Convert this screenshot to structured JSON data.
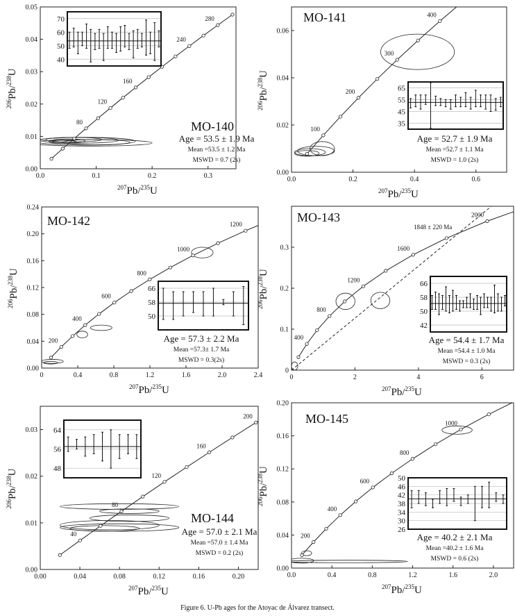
{
  "caption": "Figure 6. U-Pb ages for the Atoyac de Álvarez transect.",
  "chart_data": [
    {
      "type": "concordia",
      "title": "MO-140",
      "stats": {
        "age": "Age = 53.5 ± 1.9 Ma",
        "mean": "Mean =53.5 ± 1.2 Ma",
        "mswd": "MSWD = 0.7 (2s)"
      },
      "xlabel": [
        "207",
        "Pb/",
        "235",
        "U"
      ],
      "ylabel": [
        "206",
        "Pb/",
        "238",
        "U"
      ],
      "xlim": [
        0,
        0.35
      ],
      "xticks": [
        {
          "value": 0,
          "label": "0.0"
        },
        0.1,
        0.2,
        0.3
      ],
      "ylim": [
        0,
        0.05
      ],
      "yticks": [
        {
          "value": 0,
          "label": "0.00"
        },
        0.01,
        0.02,
        0.03,
        0.04,
        {
          "value": 0.05,
          "label": "0.05"
        }
      ],
      "concordia": {
        "x": [
          0.019897,
          0.04018,
          0.060872,
          0.081975,
          0.1035,
          0.12545,
          0.14784,
          0.17068,
          0.19397,
          0.21771,
          0.24192,
          0.26664,
          0.29183,
          0.31753,
          0.34375
        ],
        "y": [
          0.003107,
          0.006224,
          0.009351,
          0.012487,
          0.015633,
          0.018789,
          0.021955,
          0.025131,
          0.028316,
          0.031511,
          0.034717,
          0.037932,
          0.041157,
          0.044392,
          0.047638
        ],
        "labels": [
          null,
          null,
          null,
          80,
          null,
          120,
          null,
          160,
          null,
          200,
          null,
          240,
          null,
          280,
          null
        ]
      },
      "ellipses": [
        {
          "x": 0.07,
          "y": 0.0088,
          "rx": 0.07,
          "ry": 0.0009
        },
        {
          "x": 0.08,
          "y": 0.0085,
          "rx": 0.09,
          "ry": 0.0012
        },
        {
          "x": 0.06,
          "y": 0.009,
          "rx": 0.05,
          "ry": 0.0007
        },
        {
          "x": 0.1,
          "y": 0.0082,
          "rx": 0.06,
          "ry": 0.0008
        },
        {
          "x": 0.05,
          "y": 0.0086,
          "rx": 0.03,
          "ry": 0.0006
        },
        {
          "x": 0.04,
          "y": 0.0083,
          "rx": 0.025,
          "ry": 0.0005
        },
        {
          "x": 0.09,
          "y": 0.008,
          "rx": 0.11,
          "ry": 0.001
        }
      ],
      "inset": {
        "ylim": [
          35,
          75
        ],
        "yticks": [
          70,
          60,
          50,
          40
        ],
        "mean": 53.5,
        "values": [
          54,
          56,
          52,
          55,
          57,
          50,
          53,
          55,
          49,
          56,
          54,
          52,
          55,
          57,
          53,
          51,
          55,
          54,
          56,
          52,
          53,
          55
        ],
        "errors": [
          6,
          7,
          8,
          5,
          9,
          12,
          6,
          7,
          10,
          8,
          6,
          7,
          9,
          8,
          6,
          10,
          7,
          5,
          13,
          8,
          14,
          6
        ]
      }
    },
    {
      "type": "concordia",
      "title": "MO-141",
      "stats": {
        "age": "Age = 52.7 ± 1.9 Ma",
        "mean": "Mean =52.7 ± 1.1 Ma",
        "mswd": "MSWD = 1.0 (2s)"
      },
      "xlabel": [
        "207",
        "Pb/",
        "235",
        "U"
      ],
      "ylabel": [
        "206",
        "Pb/",
        "238",
        "U"
      ],
      "xlim": [
        0,
        0.7
      ],
      "xticks": [
        {
          "value": 0,
          "label": "0.0"
        },
        0.2,
        0.4,
        0.6
      ],
      "ylim": [
        0,
        0.07
      ],
      "yticks": [
        {
          "value": 0,
          "label": "0.00"
        },
        0.02,
        0.04,
        0.06
      ],
      "concordia": {
        "x": [
          0.050475,
          0.1035,
          0.15919,
          0.21771,
          0.27918,
          0.34375,
          0.41157,
          0.4828,
          0.55765
        ],
        "y": [
          0.007786,
          0.015633,
          0.023542,
          0.031511,
          0.039543,
          0.047638,
          0.055795,
          0.064016,
          0.0723
        ],
        "labels": [
          null,
          100,
          null,
          200,
          null,
          300,
          null,
          400,
          null
        ]
      },
      "ellipses": [
        {
          "x": 0.41,
          "y": 0.051,
          "rx": 0.12,
          "ry": 0.0075
        },
        {
          "x": 0.06,
          "y": 0.0085,
          "rx": 0.05,
          "ry": 0.0015
        },
        {
          "x": 0.08,
          "y": 0.009,
          "rx": 0.06,
          "ry": 0.002
        },
        {
          "x": 0.05,
          "y": 0.008,
          "rx": 0.04,
          "ry": 0.0012
        },
        {
          "x": 0.1,
          "y": 0.01,
          "rx": 0.04,
          "ry": 0.003
        }
      ],
      "inset": {
        "ylim": [
          30,
          70
        ],
        "yticks": [
          65,
          55,
          45,
          35
        ],
        "mean": 52.7,
        "values": [
          52,
          54,
          53,
          55,
          50,
          54,
          53,
          52,
          51,
          54,
          53,
          55,
          52,
          56,
          54,
          53,
          52,
          51,
          53
        ],
        "errors": [
          4,
          5,
          6,
          4,
          20,
          4,
          3,
          3,
          4,
          5,
          4,
          6,
          5,
          7,
          5,
          6,
          7,
          5,
          4
        ]
      }
    },
    {
      "type": "concordia",
      "title": "MO-142",
      "stats": {
        "age": "Age = 57.3 ± 2.2 Ma",
        "mean": "Mean =57.3± 1.7 Ma",
        "mswd": "MSWD = 0.3(2s)"
      },
      "xlabel": [
        "207",
        "Pb/",
        "235",
        "U"
      ],
      "ylabel": [
        "206",
        "Pb/",
        "238",
        "U"
      ],
      "xlim": [
        0,
        2.4
      ],
      "xticks": [
        0,
        0.4,
        0.8,
        1.2,
        1.6,
        {
          "value": 2,
          "label": "2.0"
        },
        2.4
      ],
      "ylim": [
        0,
        0.24
      ],
      "yticks": [
        {
          "value": 0,
          "label": "0.00"
        },
        0.04,
        0.08,
        0.12,
        0.16,
        {
          "value": 0.2,
          "label": "0.20"
        },
        0.24
      ],
      "concordia": {
        "x": [
          0.1035,
          0.21771,
          0.34375,
          0.4828,
          0.63627,
          0.80561,
          0.99249,
          1.19878,
          1.4264,
          1.67745,
          1.95453,
          2.26025,
          2.59765
        ],
        "y": [
          0.015633,
          0.031511,
          0.047638,
          0.064016,
          0.08065,
          0.097544,
          0.114702,
          0.132127,
          0.149825,
          0.1678,
          0.186055,
          0.204596,
          0.223421
        ],
        "labels": [
          null,
          200,
          null,
          400,
          null,
          600,
          null,
          800,
          null,
          1000,
          null,
          1200,
          null
        ]
      },
      "ellipses": [
        {
          "x": 1.78,
          "y": 0.172,
          "rx": 0.12,
          "ry": 0.008
        },
        {
          "x": 0.66,
          "y": 0.06,
          "rx": 0.12,
          "ry": 0.004
        },
        {
          "x": 0.45,
          "y": 0.05,
          "rx": 0.06,
          "ry": 0.005
        },
        {
          "x": 0.12,
          "y": 0.01,
          "rx": 0.12,
          "ry": 0.003
        },
        {
          "x": 0.1,
          "y": 0.008,
          "rx": 0.08,
          "ry": 0.002
        }
      ],
      "inset": {
        "ylim": [
          42,
          70
        ],
        "yticks": [
          66,
          58,
          50
        ],
        "mean": 57.3,
        "values": [
          57,
          56,
          57,
          58,
          57,
          58,
          58,
          57,
          56
        ],
        "errors": [
          9,
          8,
          7,
          6,
          7,
          8,
          1.5,
          7,
          11
        ]
      }
    },
    {
      "type": "concordia",
      "title": "MO-143",
      "stats": {
        "age": "Age = 54.4 ± 1.7 Ma",
        "mean": "Mean =54.4 ± 1.0 Ma",
        "mswd": "MSWD = 0.3 (2s)"
      },
      "annotation": "1848 ± 220 Ma",
      "xlabel": [
        "207",
        "Pb/",
        "235",
        "U"
      ],
      "ylabel": [
        "206",
        "Pb/",
        "238",
        "U"
      ],
      "xlim": [
        0,
        7
      ],
      "xticks": [
        0,
        2,
        4,
        6
      ],
      "ylim": [
        0,
        0.4
      ],
      "yticks": [
        0,
        0.1,
        0.2,
        0.3
      ],
      "concordia": {
        "x": [
          0.21771,
          0.4828,
          0.80561,
          1.19878,
          1.67745,
          2.26025,
          2.96997,
          3.83424,
          4.88664,
          6.1682,
          7.7297
        ],
        "y": [
          0.031511,
          0.064016,
          0.097544,
          0.132127,
          0.1678,
          0.204596,
          0.242563,
          0.281716,
          0.322104,
          0.363764,
          0.406736
        ],
        "labels": [
          null,
          400,
          null,
          800,
          null,
          1200,
          null,
          1600,
          null,
          2000,
          null
        ]
      },
      "discordia": {
        "x": [
          0,
          6.3
        ],
        "y": [
          0,
          0.4
        ]
      },
      "ellipses": [
        {
          "x": 1.7,
          "y": 0.168,
          "rx": 0.3,
          "ry": 0.02
        },
        {
          "x": 2.8,
          "y": 0.17,
          "rx": 0.3,
          "ry": 0.02
        },
        {
          "x": 0.1,
          "y": 0.01,
          "rx": 0.1,
          "ry": 0.01
        }
      ],
      "inset": {
        "ylim": [
          38,
          70
        ],
        "yticks": [
          66,
          58,
          50,
          42
        ],
        "mean": 54.4,
        "values": [
          55,
          56,
          54,
          55,
          57,
          54,
          56,
          55,
          53,
          54,
          55,
          56,
          54,
          55,
          53,
          56,
          55,
          54,
          57,
          55,
          54,
          56
        ],
        "errors": [
          4,
          5,
          6,
          4,
          7,
          5,
          6,
          4,
          3,
          2,
          3,
          4,
          3,
          4,
          5,
          4,
          3,
          4,
          8,
          5,
          4,
          3
        ]
      }
    },
    {
      "type": "concordia",
      "title": "MO-144",
      "stats": {
        "age": "Age = 57.0 ± 2.1 Ma",
        "mean": "Mean =57.0 ± 1.4 Ma",
        "mswd": "MSWD = 0.2 (2s)"
      },
      "xlabel": [
        "207",
        "Pb/",
        "235",
        "U"
      ],
      "ylabel": [
        "206",
        "Pb/",
        "238",
        "U"
      ],
      "xlim": [
        0,
        0.22
      ],
      "xticks": [
        {
          "value": 0,
          "label": "0.00"
        },
        0.04,
        0.08,
        0.12,
        0.16,
        {
          "value": 0.2,
          "label": "0.20"
        }
      ],
      "ylim": [
        0,
        0.035
      ],
      "yticks": [
        {
          "value": 0,
          "label": "0.00"
        },
        0.01,
        0.02,
        0.03
      ],
      "concordia": {
        "x": [
          0.019897,
          0.04018,
          0.060872,
          0.081975,
          0.1035,
          0.12545,
          0.14784,
          0.17068,
          0.19397,
          0.21771,
          0.24192
        ],
        "y": [
          0.003107,
          0.006224,
          0.009351,
          0.012487,
          0.015633,
          0.018789,
          0.021955,
          0.025131,
          0.028316,
          0.031511,
          0.034717
        ],
        "labels": [
          null,
          40,
          null,
          80,
          null,
          120,
          null,
          160,
          null,
          200,
          null
        ]
      },
      "ellipses": [
        {
          "x": 0.08,
          "y": 0.0135,
          "rx": 0.06,
          "ry": 0.0006
        },
        {
          "x": 0.09,
          "y": 0.011,
          "rx": 0.04,
          "ry": 0.0007
        },
        {
          "x": 0.07,
          "y": 0.0095,
          "rx": 0.05,
          "ry": 0.001
        },
        {
          "x": 0.08,
          "y": 0.009,
          "rx": 0.06,
          "ry": 0.0008
        },
        {
          "x": 0.065,
          "y": 0.0088,
          "rx": 0.035,
          "ry": 0.0006
        },
        {
          "x": 0.09,
          "y": 0.0125,
          "rx": 0.03,
          "ry": 0.0005
        }
      ],
      "inset": {
        "ylim": [
          44,
          68
        ],
        "yticks": [
          64,
          56,
          48
        ],
        "mean": 57.0,
        "values": [
          58,
          58,
          57,
          58,
          57,
          56,
          57,
          58,
          57
        ],
        "errors": [
          3,
          2,
          4,
          4,
          6,
          8,
          5,
          4,
          5
        ]
      }
    },
    {
      "type": "concordia",
      "title": "MO-145",
      "stats": {
        "age": "Age = 40.2 ± 2.1 Ma",
        "mean": "Mean =40.2 ± 1.6 Ma",
        "mswd": "MSWD = 0.6 (2s)"
      },
      "xlabel": [
        "207",
        "Pb/",
        "235",
        "U"
      ],
      "ylabel": [
        "206",
        "Pb/",
        "238",
        "U"
      ],
      "xlim": [
        0,
        2.2
      ],
      "xticks": [
        {
          "value": 0,
          "label": "0.0"
        },
        0.4,
        0.8,
        1.2,
        1.6,
        {
          "value": 2,
          "label": "2.0"
        }
      ],
      "ylim": [
        0,
        0.2
      ],
      "yticks": [
        {
          "value": 0,
          "label": "0.00"
        },
        0.04,
        0.08,
        0.12,
        0.16,
        {
          "value": 0.2,
          "label": "0.20"
        }
      ],
      "concordia": {
        "x": [
          0.1035,
          0.21771,
          0.34375,
          0.4828,
          0.63627,
          0.80561,
          0.99249,
          1.19878,
          1.4264,
          1.67745,
          1.95453,
          2.26025
        ],
        "y": [
          0.015633,
          0.031511,
          0.047638,
          0.064016,
          0.08065,
          0.097544,
          0.114702,
          0.132127,
          0.149825,
          0.1678,
          0.186055,
          0.204596
        ],
        "labels": [
          null,
          200,
          null,
          400,
          null,
          600,
          null,
          800,
          null,
          1000,
          null,
          null
        ]
      },
      "ellipses": [
        {
          "x": 0.55,
          "y": 0.008,
          "rx": 0.6,
          "ry": 0.0015
        },
        {
          "x": 0.1,
          "y": 0.009,
          "rx": 0.12,
          "ry": 0.003
        },
        {
          "x": 0.15,
          "y": 0.018,
          "rx": 0.05,
          "ry": 0.003
        },
        {
          "x": 1.64,
          "y": 0.167,
          "rx": 0.15,
          "ry": 0.005
        }
      ],
      "inset": {
        "ylim": [
          26,
          50
        ],
        "yticks": [
          50,
          46,
          42,
          38,
          34,
          30,
          26
        ],
        "mean": 40.2,
        "values": [
          40,
          41,
          40,
          38,
          41,
          41,
          42,
          39,
          40,
          38,
          41,
          42,
          41,
          40
        ],
        "errors": [
          4,
          3,
          3,
          2,
          3,
          4,
          3,
          2,
          2,
          8,
          5,
          6,
          2,
          2
        ]
      }
    }
  ]
}
